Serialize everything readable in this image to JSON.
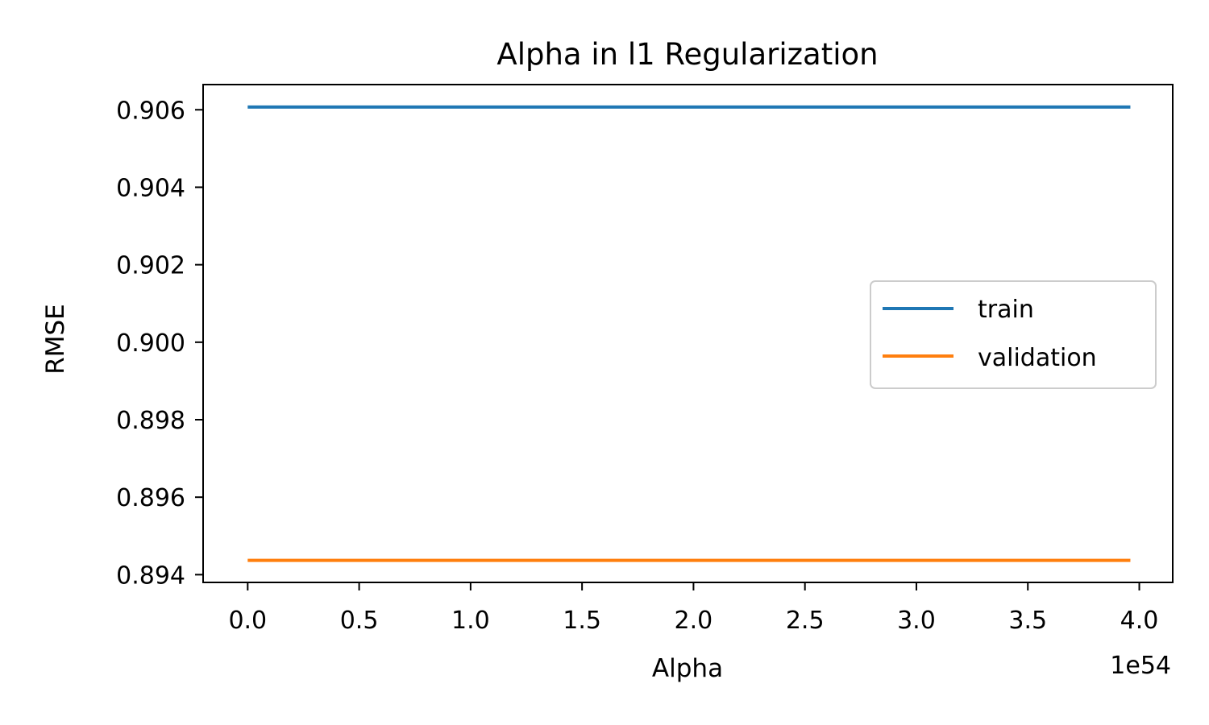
{
  "chart_data": {
    "type": "line",
    "title": "Alpha in l1 Regularization",
    "xlabel": "Alpha",
    "ylabel": "RMSE",
    "x_offset_label": "1e54",
    "xlim": [
      -0.2,
      4.15
    ],
    "ylim": [
      0.8938,
      0.90665
    ],
    "x_ticks": [
      0.0,
      0.5,
      1.0,
      1.5,
      2.0,
      2.5,
      3.0,
      3.5,
      4.0
    ],
    "x_tick_labels": [
      "0.0",
      "0.5",
      "1.0",
      "1.5",
      "2.0",
      "2.5",
      "3.0",
      "3.5",
      "4.0"
    ],
    "y_ticks": [
      0.894,
      0.896,
      0.898,
      0.9,
      0.902,
      0.904,
      0.906
    ],
    "y_tick_labels": [
      "0.894",
      "0.896",
      "0.898",
      "0.900",
      "0.902",
      "0.904",
      "0.906"
    ],
    "grid": false,
    "legend_position": "center-right",
    "series": [
      {
        "name": "train",
        "color": "#1f77b4",
        "x": [
          0.0,
          3.96
        ],
        "y": [
          0.90607,
          0.90607
        ]
      },
      {
        "name": "validation",
        "color": "#ff7f0e",
        "x": [
          0.0,
          3.96
        ],
        "y": [
          0.89437,
          0.89437
        ]
      }
    ]
  }
}
